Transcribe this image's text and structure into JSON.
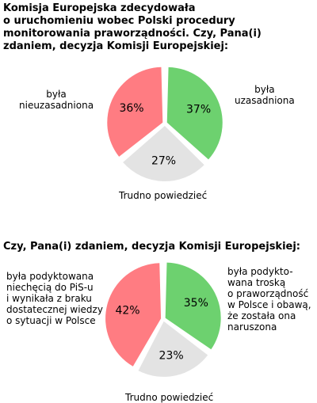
{
  "chart_data": [
    {
      "type": "pie",
      "title_lines": [
        "Komisja Europejska zdecydowała",
        "o uruchomieniu wobec Polski procedury",
        "monitorowania praworządności. Czy, Pana(i)",
        "zdaniem, decyzja Komisji Europejskiej:"
      ],
      "slices": [
        {
          "label_lines": [
            "była",
            "uzasadniona"
          ],
          "value": 37,
          "value_label": "37%",
          "color": "#6dd16f"
        },
        {
          "label_lines": [
            "Trudno powiedzieć"
          ],
          "value": 27,
          "value_label": "27%",
          "color": "#e3e3e3"
        },
        {
          "label_lines": [
            "była",
            "nieuzasadniona"
          ],
          "value": 36,
          "value_label": "36%",
          "color": "#ff7c82"
        }
      ]
    },
    {
      "type": "pie",
      "title_lines": [
        "Czy, Pana(i) zdaniem, decyzja Komisji Europejskiej:"
      ],
      "slices": [
        {
          "label_lines": [
            "była podykto-",
            "wana troską",
            "o praworządność",
            "w Polsce i obawą,",
            "że została ona",
            "naruszona"
          ],
          "value": 35,
          "value_label": "35%",
          "color": "#6dd16f"
        },
        {
          "label_lines": [
            "Trudno powiedzieć"
          ],
          "value": 23,
          "value_label": "23%",
          "color": "#e3e3e3"
        },
        {
          "label_lines": [
            "była podyktowana",
            "niechęcią do PiS-u",
            "i wynikała z braku",
            "dostatecznej wiedzy",
            "o sytuacji w Polsce"
          ],
          "value": 42,
          "value_label": "42%",
          "color": "#ff7c82"
        }
      ]
    }
  ]
}
